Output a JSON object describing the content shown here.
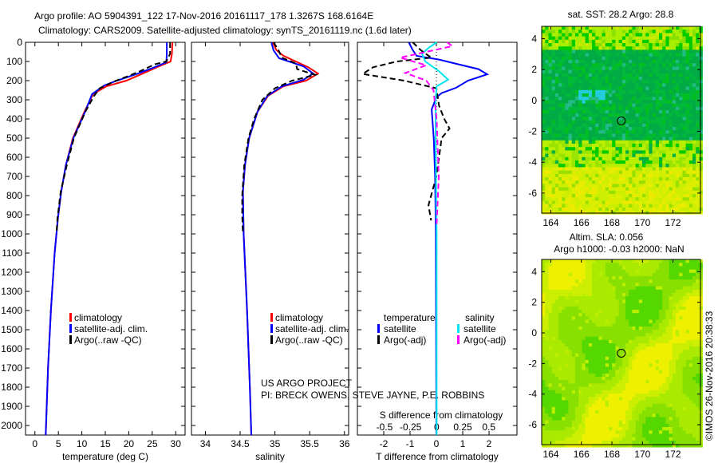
{
  "title": {
    "line1": "Argo profile: AO 5904391_122 17-Nov-2016 20161117_178 1.3267S 168.6164E",
    "line2": "Climatology: CARS2009. Satellite-adjusted climatology: synTS_20161119.nc (1.6d later)"
  },
  "credits": {
    "project": "US ARGO PROJECT",
    "pi": "PI: BRECK OWENS, STEVE JAYNE, P.E. ROBBINS",
    "copyright": "©IMOS 26-Nov-2016 20:38:33"
  },
  "colors": {
    "climatology": "#ff0000",
    "satellite": "#0000ff",
    "argo": "#000000",
    "s_satellite": "#00e5ee",
    "s_argo": "#ff00ff"
  },
  "chart_data": [
    {
      "type": "line",
      "id": "temperature",
      "xlabel": "temperature (deg C)",
      "ylabel": "",
      "xlim": [
        -2,
        32
      ],
      "ylim": [
        2050,
        0
      ],
      "xticks": [
        0,
        5,
        10,
        15,
        20,
        25,
        30
      ],
      "yticks": [
        0,
        100,
        200,
        300,
        400,
        500,
        600,
        700,
        800,
        900,
        1000,
        1100,
        1200,
        1300,
        1400,
        1500,
        1600,
        1700,
        1800,
        1900,
        2000
      ],
      "legend": [
        "climatology",
        "satellite-adj. clim.",
        "Argo(..raw -QC)"
      ],
      "series": [
        {
          "name": "climatology",
          "color": "#ff0000",
          "style": "solid",
          "depth": [
            0,
            60,
            100,
            130,
            165,
            200,
            230,
            270,
            360,
            500,
            640,
            780,
            920,
            1100,
            1400,
            1700,
            2050
          ],
          "values": [
            29.3,
            29.2,
            28.9,
            26,
            22.8,
            19.5,
            15.2,
            12.4,
            10.6,
            8.1,
            6.6,
            5.6,
            4.9,
            4.2,
            3.4,
            2.8,
            2.3
          ]
        },
        {
          "name": "satellite-adj. clim.",
          "color": "#0000ff",
          "style": "solid",
          "depth": [
            0,
            60,
            104,
            130,
            163,
            200,
            225,
            270,
            362,
            500,
            640,
            780,
            917,
            1100,
            1400,
            1700,
            2050
          ],
          "values": [
            28.1,
            28.1,
            28.0,
            25.5,
            22.0,
            17.5,
            14.8,
            12.2,
            10.7,
            8.2,
            6.6,
            5.6,
            4.9,
            4.2,
            3.4,
            2.8,
            2.3
          ]
        },
        {
          "name": "Argo(..raw -QC)",
          "color": "#000000",
          "style": "dashed",
          "depth": [
            0,
            60,
            100,
            115,
            150,
            180,
            200,
            240,
            280,
            360,
            500,
            640,
            780,
            920,
            1000
          ],
          "values": [
            28.8,
            28.8,
            28.0,
            25.5,
            22.5,
            19.5,
            17.3,
            13.8,
            12.6,
            10.8,
            8.3,
            6.8,
            5.5,
            4.8,
            4.6
          ]
        }
      ]
    },
    {
      "type": "line",
      "id": "salinity",
      "xlabel": "salinity",
      "xlim": [
        33.8,
        36.06
      ],
      "ylim": [
        2050,
        0
      ],
      "xticks": [
        34,
        34.5,
        35,
        35.5,
        36
      ],
      "legend": [
        "climatology",
        "satellite-adj. clim.",
        "Argo(..raw -QC)"
      ],
      "series": [
        {
          "name": "climatology",
          "color": "#ff0000",
          "style": "solid",
          "depth": [
            0,
            40,
            70,
            100,
            130,
            163,
            200,
            230,
            280,
            362,
            500,
            640,
            780,
            1000,
            1400,
            1800,
            2050
          ],
          "values": [
            34.97,
            35.02,
            35.12,
            35.3,
            35.48,
            35.62,
            35.45,
            35.12,
            34.9,
            34.75,
            34.63,
            34.57,
            34.54,
            34.55,
            34.6,
            34.64,
            34.66
          ]
        },
        {
          "name": "satellite-adj. clim.",
          "color": "#0000ff",
          "style": "solid",
          "depth": [
            0,
            42,
            83,
            125,
            163,
            196,
            230,
            280,
            362,
            500,
            640,
            780,
            1000,
            1400,
            1800,
            2050
          ],
          "values": [
            34.95,
            34.98,
            35.06,
            35.41,
            35.55,
            35.41,
            35.1,
            34.89,
            34.75,
            34.63,
            34.57,
            34.54,
            34.55,
            34.6,
            34.64,
            34.66
          ]
        },
        {
          "name": "Argo(..raw -QC)",
          "color": "#000000",
          "style": "dashed",
          "depth": [
            0,
            40,
            80,
            110,
            140,
            170,
            200,
            240,
            300,
            400,
            500,
            640,
            800,
            900,
            1000
          ],
          "values": [
            34.98,
            35.05,
            35.1,
            35.3,
            35.32,
            35.58,
            35.25,
            35.0,
            34.82,
            34.7,
            34.62,
            34.56,
            34.53,
            34.53,
            34.54
          ]
        }
      ]
    },
    {
      "type": "line",
      "id": "difference",
      "xlabel": "T difference from climatology",
      "x2label": "S difference from climatology",
      "xlim": [
        -3,
        3.06
      ],
      "x2lim": [
        -0.76,
        0.77
      ],
      "ylim": [
        2050,
        0
      ],
      "xticks": [
        -2,
        -1,
        0,
        1,
        2
      ],
      "x2ticks": [
        -0.5,
        -0.25,
        0,
        0.25,
        0.5
      ],
      "legend": {
        "temperature_header": "temperature",
        "salinity_header": "salinity",
        "t_sat": "satellite",
        "t_argo": "Argo(-adj)",
        "s_sat": "satellite",
        "s_argo": "Argo(-adj)"
      },
      "series": [
        {
          "name": "T satellite",
          "axis": "T",
          "color": "#0000ff",
          "style": "solid",
          "depth": [
            0,
            40,
            71,
            90,
            112,
            140,
            167,
            200,
            237,
            265,
            287,
            350,
            500,
            700,
            1000,
            2050
          ],
          "values": [
            -1.05,
            -0.9,
            -0.75,
            0.1,
            0.75,
            1.6,
            1.93,
            1.2,
            0.75,
            0.2,
            0,
            -0.18,
            -0.1,
            -0.05,
            -0.02,
            0
          ]
        },
        {
          "name": "T Argo(-adj)",
          "axis": "T",
          "color": "#000000",
          "style": "dashed",
          "depth": [
            0,
            40,
            80,
            100,
            130,
            165,
            200,
            240,
            330,
            400,
            450,
            500,
            600,
            700,
            850,
            930
          ],
          "values": [
            -0.9,
            -0.6,
            -0.2,
            -1.5,
            -2.4,
            -2.8,
            -1.23,
            0,
            0.1,
            0.3,
            0.5,
            0.2,
            0.1,
            0,
            -0.3,
            -0.2
          ]
        },
        {
          "name": "S satellite",
          "axis": "S",
          "color": "#00e5ee",
          "style": "solid",
          "depth": [
            0,
            30,
            60,
            100,
            150,
            195,
            230,
            300,
            500,
            1000,
            2050
          ],
          "values": [
            0,
            -0.08,
            -0.14,
            -0.11,
            0.02,
            0.11,
            0,
            -0.01,
            -0.01,
            0,
            0
          ]
        },
        {
          "name": "S Argo(-adj)",
          "axis": "S",
          "color": "#ff00ff",
          "style": "dashed",
          "depth": [
            0,
            20,
            50,
            80,
            120,
            160,
            200,
            250,
            400,
            700,
            950
          ],
          "values": [
            0.1,
            0.15,
            -0.1,
            -0.35,
            -0.1,
            -0.3,
            -0.1,
            -0.03,
            0,
            0.02,
            0
          ]
        }
      ]
    },
    {
      "type": "heatmap",
      "id": "sst-map",
      "title": "sat. SST: 28.2 Argo: 28.8",
      "xlim": [
        163.4,
        173.8
      ],
      "ylim": [
        -7.3,
        4.8
      ],
      "xticks": [
        164,
        166,
        168,
        170,
        172
      ],
      "yticks": [
        4,
        2,
        0,
        -2,
        -4,
        -6
      ],
      "marker": {
        "lon": 168.6164,
        "lat": -1.3267
      }
    },
    {
      "type": "heatmap",
      "id": "sla-map",
      "title": "Altim. SLA: 0.056",
      "subtitle": "Argo h1000: -0.03 h2000: NaN",
      "xlim": [
        163.4,
        173.8
      ],
      "ylim": [
        -7.3,
        4.8
      ],
      "xticks": [
        164,
        166,
        168,
        170,
        172
      ],
      "yticks": [
        4,
        2,
        0,
        -2,
        -4,
        -6
      ],
      "marker": {
        "lon": 168.6164,
        "lat": -1.3267
      }
    }
  ]
}
